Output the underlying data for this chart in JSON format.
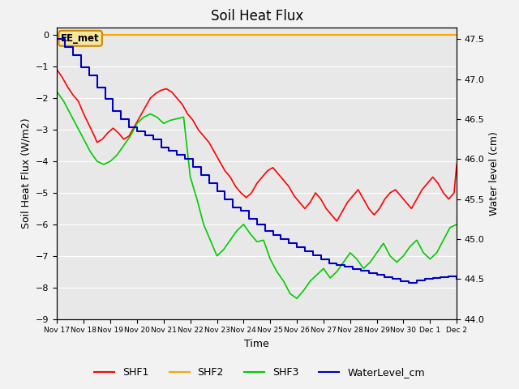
{
  "title": "Soil Heat Flux",
  "ylabel_left": "Soil Heat Flux (W/m2)",
  "ylabel_right": "Water level (cm)",
  "xlabel": "Time",
  "ylim_left": [
    -9.0,
    0.25
  ],
  "ylim_right": [
    44.0,
    47.65
  ],
  "yticks_left": [
    0.0,
    -1.0,
    -2.0,
    -3.0,
    -4.0,
    -5.0,
    -6.0,
    -7.0,
    -8.0,
    -9.0
  ],
  "yticks_right": [
    44.0,
    44.5,
    45.0,
    45.5,
    46.0,
    46.5,
    47.0,
    47.5
  ],
  "background_color": "#f2f2f2",
  "plot_bg_color": "#e8e8e8",
  "annotation_text": "EE_met",
  "annotation_color": "#cc8800",
  "shf2_color": "#ffa500",
  "shf1_color": "#ff0000",
  "shf3_color": "#00cc00",
  "water_color": "#0000bb",
  "x_labels": [
    "Nov 17",
    "Nov 18",
    "Nov 19",
    "Nov 20",
    "Nov 21",
    "Nov 22",
    "Nov 23",
    "Nov 24",
    "Nov 25",
    "Nov 26",
    "Nov 27",
    "Nov 28",
    "Nov 29",
    "Nov 30",
    "Dec 1",
    "Dec 2"
  ],
  "shf1_x": [
    0.0,
    0.2,
    0.4,
    0.6,
    0.8,
    1.0,
    1.2,
    1.4,
    1.5,
    1.7,
    1.9,
    2.1,
    2.3,
    2.5,
    2.7,
    2.9,
    3.1,
    3.3,
    3.5,
    3.7,
    3.9,
    4.1,
    4.3,
    4.5,
    4.7,
    4.9,
    5.1,
    5.3,
    5.5,
    5.7,
    5.9,
    6.1,
    6.3,
    6.5,
    6.7,
    6.9,
    7.1,
    7.3,
    7.5,
    7.7,
    7.9,
    8.1,
    8.3,
    8.5,
    8.7,
    8.9,
    9.1,
    9.3,
    9.5,
    9.7,
    9.9,
    10.1,
    10.3,
    10.5,
    10.7,
    10.9,
    11.1,
    11.3,
    11.5,
    11.7,
    11.9,
    12.1,
    12.3,
    12.5,
    12.7,
    12.9,
    13.1,
    13.3,
    13.5,
    13.7,
    13.9,
    14.1,
    14.3,
    14.5,
    14.7,
    14.9,
    15.0
  ],
  "shf1_y": [
    -1.1,
    -1.35,
    -1.65,
    -1.9,
    -2.1,
    -2.5,
    -2.85,
    -3.2,
    -3.4,
    -3.3,
    -3.1,
    -2.95,
    -3.1,
    -3.3,
    -3.2,
    -2.9,
    -2.6,
    -2.3,
    -2.0,
    -1.85,
    -1.75,
    -1.7,
    -1.8,
    -2.0,
    -2.2,
    -2.5,
    -2.7,
    -3.0,
    -3.2,
    -3.4,
    -3.7,
    -4.0,
    -4.3,
    -4.5,
    -4.8,
    -5.0,
    -5.15,
    -5.0,
    -4.7,
    -4.5,
    -4.3,
    -4.2,
    -4.4,
    -4.6,
    -4.8,
    -5.1,
    -5.3,
    -5.5,
    -5.3,
    -5.0,
    -5.2,
    -5.5,
    -5.7,
    -5.9,
    -5.6,
    -5.3,
    -5.1,
    -4.9,
    -5.2,
    -5.5,
    -5.7,
    -5.5,
    -5.2,
    -5.0,
    -4.9,
    -5.1,
    -5.3,
    -5.5,
    -5.2,
    -4.9,
    -4.7,
    -4.5,
    -4.7,
    -5.0,
    -5.2,
    -5.0,
    -4.1
  ],
  "shf3_x": [
    0.0,
    0.25,
    0.5,
    0.75,
    1.0,
    1.25,
    1.5,
    1.75,
    2.0,
    2.25,
    2.5,
    2.75,
    3.0,
    3.25,
    3.5,
    3.75,
    4.0,
    4.25,
    4.5,
    4.75,
    5.0,
    5.25,
    5.5,
    5.75,
    6.0,
    6.25,
    6.5,
    6.75,
    7.0,
    7.25,
    7.5,
    7.75,
    8.0,
    8.25,
    8.5,
    8.75,
    9.0,
    9.25,
    9.5,
    9.75,
    10.0,
    10.25,
    10.5,
    10.75,
    11.0,
    11.25,
    11.5,
    11.75,
    12.0,
    12.25,
    12.5,
    12.75,
    13.0,
    13.25,
    13.5,
    13.75,
    14.0,
    14.25,
    14.5,
    14.75,
    15.0
  ],
  "shf3_y": [
    -1.8,
    -2.1,
    -2.5,
    -2.9,
    -3.3,
    -3.7,
    -4.0,
    -4.1,
    -4.0,
    -3.8,
    -3.5,
    -3.2,
    -2.8,
    -2.6,
    -2.5,
    -2.6,
    -2.8,
    -2.7,
    -2.65,
    -2.6,
    -4.5,
    -5.2,
    -6.0,
    -6.5,
    -7.0,
    -6.8,
    -6.5,
    -6.2,
    -6.0,
    -6.3,
    -6.55,
    -6.5,
    -7.1,
    -7.5,
    -7.8,
    -8.2,
    -8.35,
    -8.1,
    -7.8,
    -7.6,
    -7.4,
    -7.7,
    -7.5,
    -7.2,
    -6.9,
    -7.1,
    -7.4,
    -7.2,
    -6.9,
    -6.6,
    -7.0,
    -7.2,
    -7.0,
    -6.7,
    -6.5,
    -6.9,
    -7.1,
    -6.9,
    -6.5,
    -6.1,
    -6.0
  ],
  "water_x": [
    0.0,
    0.3,
    0.6,
    0.9,
    1.2,
    1.5,
    1.8,
    2.1,
    2.4,
    2.7,
    3.0,
    3.3,
    3.6,
    3.9,
    4.2,
    4.5,
    4.8,
    5.1,
    5.4,
    5.7,
    6.0,
    6.3,
    6.6,
    6.9,
    7.2,
    7.5,
    7.8,
    8.1,
    8.4,
    8.7,
    9.0,
    9.3,
    9.6,
    9.9,
    10.2,
    10.5,
    10.8,
    11.1,
    11.4,
    11.7,
    12.0,
    12.3,
    12.6,
    12.9,
    13.2,
    13.5,
    13.8,
    14.1,
    14.4,
    14.7,
    15.0
  ],
  "water_y": [
    47.5,
    47.4,
    47.3,
    47.15,
    47.05,
    46.9,
    46.75,
    46.6,
    46.5,
    46.4,
    46.35,
    46.3,
    46.25,
    46.15,
    46.1,
    46.05,
    46.0,
    45.9,
    45.8,
    45.7,
    45.6,
    45.5,
    45.4,
    45.35,
    45.25,
    45.18,
    45.1,
    45.05,
    45.0,
    44.95,
    44.9,
    44.85,
    44.8,
    44.75,
    44.7,
    44.68,
    44.65,
    44.62,
    44.6,
    44.57,
    44.55,
    44.52,
    44.5,
    44.47,
    44.45,
    44.48,
    44.5,
    44.51,
    44.52,
    44.53,
    44.5
  ],
  "title_fontsize": 12,
  "axis_label_fontsize": 9,
  "tick_fontsize": 8,
  "legend_fontsize": 9
}
